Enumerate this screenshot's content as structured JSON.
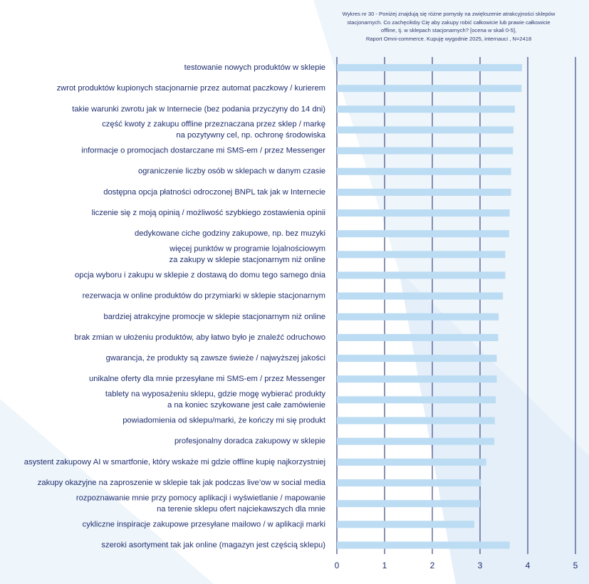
{
  "title_lines": [
    "Wykres nr 30 - Poniżej znajdują się różne pomysły na zwiększenie atrakcyjności sklepów",
    "stacjonarnych. Co zachęciłoby Cię aby zakupy robić całkowicie lub prawie całkowicie",
    "offline, tj. w sklepach stacjonarnych? [ocena w skali 0-5],",
    "Raport Omni-commerce. Kupuję wygodnie 2025, internauci , N=2418"
  ],
  "colors": {
    "bar": "#bcdcf3",
    "gridline": "#2b3a78",
    "text": "#1f2e6e",
    "background_accent": "#e6f1fa"
  },
  "chart_data": {
    "type": "bar",
    "orientation": "horizontal",
    "title": "Wykres nr 30 - Poniżej znajdują się różne pomysły na zwiększenie atrakcyjności sklepów stacjonarnych. Co zachęciłoby Cię aby zakupy robić całkowicie lub prawie całkowicie offline, tj. w sklepach stacjonarnych? [ocena w skali 0-5], Raport Omni-commerce. Kupuję wygodnie 2025, internauci , N=2418",
    "categories": [
      [
        "testowanie nowych produktów w sklepie"
      ],
      [
        "zwrot produktów kupionych stacjonarnie przez automat paczkowy / kurierem"
      ],
      [
        "takie warunki zwrotu jak w Internecie (bez podania przyczyny do 14 dni)"
      ],
      [
        "część kwoty z zakupu offline przeznaczana przez sklep / markę",
        "na pozytywny cel, np. ochronę środowiska"
      ],
      [
        "informacje o promocjach dostarczane mi SMS-em / przez Messenger"
      ],
      [
        "ograniczenie liczby osób w sklepach w danym czasie"
      ],
      [
        "dostępna opcja płatności odroczonej BNPL tak jak w Internecie"
      ],
      [
        "liczenie się z moją opinią / możliwość szybkiego zostawienia opinii"
      ],
      [
        "dedykowane ciche godziny zakupowe, np. bez muzyki"
      ],
      [
        "więcej punktów w programie lojalnościowym",
        "za zakupy w sklepie stacjonarnym niż online"
      ],
      [
        "opcja wyboru i zakupu w sklepie z dostawą do domu tego samego dnia"
      ],
      [
        "rezerwacja w online produktów do przymiarki w sklepie stacjonarnym"
      ],
      [
        "bardziej atrakcyjne promocje w sklepie stacjonarnym niż online"
      ],
      [
        "brak zmian w ułożeniu produktów, aby łatwo było je znaleźć odruchowo"
      ],
      [
        "gwarancja, że produkty są zawsze świeże / najwyższej jakości"
      ],
      [
        "unikalne oferty dla mnie przesyłane mi SMS-em / przez Messenger"
      ],
      [
        "tablety na wyposażeniu sklepu, gdzie mogę wybierać produkty",
        "a na koniec szykowane jest całe zamówienie"
      ],
      [
        "powiadomienia od sklepu/marki, że kończy mi się produkt"
      ],
      [
        "profesjonalny doradca zakupowy w sklepie"
      ],
      [
        "asystent zakupowy AI w smartfonie, który wskaże mi gdzie offline kupię najkorzystniej"
      ],
      [
        "zakupy okazyjne na zaproszenie w sklepie tak jak podczas live’ow w social media"
      ],
      [
        "rozpoznawanie mnie przy pomocy aplikacji i wyświetlanie / mapowanie",
        "na terenie sklepu ofert najciekawszych dla mnie"
      ],
      [
        "cykliczne inspiracje zakupowe przesyłane mailowo / w aplikacji marki"
      ],
      [
        "szeroki asortyment tak jak online (magazyn jest częścią sklepu)"
      ]
    ],
    "values": [
      3.88,
      3.87,
      3.73,
      3.7,
      3.69,
      3.65,
      3.65,
      3.62,
      3.61,
      3.53,
      3.53,
      3.48,
      3.39,
      3.38,
      3.35,
      3.35,
      3.33,
      3.31,
      3.3,
      3.13,
      3.02,
      3.0,
      2.88,
      3.62
    ],
    "xlim": [
      0,
      5
    ],
    "xticks": [
      "0",
      "1",
      "2",
      "3",
      "4",
      "5"
    ],
    "grid": "vertical",
    "xlabel": "",
    "ylabel": ""
  }
}
